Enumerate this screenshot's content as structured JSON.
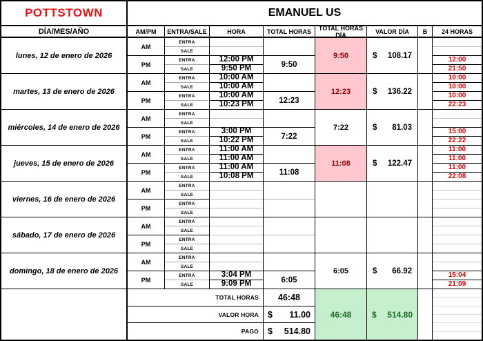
{
  "header": {
    "location": "POTTSTOWN",
    "employee": "EMANUEL US"
  },
  "columns": {
    "date": "DÍA/MES/AÑO",
    "ampm": "AM/PM",
    "entra_sale": "ENTRA/SALE",
    "hora": "HORA",
    "total_horas": "TOTAL HORAS",
    "total_horas_dia": "TOTAL HORAS DÍA",
    "valor_dia": "VALOR DÍA",
    "b": "B",
    "h24": "24 HORAS"
  },
  "labels": {
    "am": "AM",
    "pm": "PM",
    "entra": "ENTRA",
    "sale": "SALE"
  },
  "days": [
    {
      "date": "lunes, 12 de enero de 2026",
      "hora": [
        "",
        "",
        "12:00 PM",
        "9:50 PM"
      ],
      "section_totals": [
        "",
        "9:50"
      ],
      "total_dia": "9:50",
      "valor_dia": {
        "sign": "$",
        "amount": "108.17"
      },
      "h24": [
        "",
        "",
        "12:00",
        "21:50"
      ],
      "highlight": true
    },
    {
      "date": "martes, 13 de enero de 2026",
      "hora": [
        "10:00 AM",
        "10:00 AM",
        "10:00 AM",
        "10:23 PM"
      ],
      "section_totals": [
        "",
        "12:23"
      ],
      "total_dia": "12:23",
      "valor_dia": {
        "sign": "$",
        "amount": "136.22"
      },
      "h24": [
        "10:00",
        "10:00",
        "10:00",
        "22:23"
      ],
      "highlight": true
    },
    {
      "date": "miércoles, 14 de enero de 2026",
      "hora": [
        "",
        "",
        "3:00 PM",
        "10:22 PM"
      ],
      "section_totals": [
        "",
        "7:22"
      ],
      "total_dia": "7:22",
      "valor_dia": {
        "sign": "$",
        "amount": "81.03"
      },
      "h24": [
        "",
        "",
        "15:00",
        "22:22"
      ],
      "highlight": false
    },
    {
      "date": "jueves, 15 de enero de 2026",
      "hora": [
        "11:00 AM",
        "11:00 AM",
        "11:00 AM",
        "10:08 PM"
      ],
      "section_totals": [
        "",
        "11:08"
      ],
      "total_dia": "11:08",
      "valor_dia": {
        "sign": "$",
        "amount": "122.47"
      },
      "h24": [
        "11:00",
        "11:00",
        "11:00",
        "22:08"
      ],
      "highlight": true
    },
    {
      "date": "viernes, 16 de enero de 2026",
      "hora": [
        "",
        "",
        "",
        ""
      ],
      "section_totals": [
        "",
        ""
      ],
      "total_dia": "",
      "valor_dia": {
        "sign": "",
        "amount": ""
      },
      "h24": [
        "",
        "",
        "",
        ""
      ],
      "highlight": false
    },
    {
      "date": "sábado, 17 de enero de 2026",
      "hora": [
        "",
        "",
        "",
        ""
      ],
      "section_totals": [
        "",
        ""
      ],
      "total_dia": "",
      "valor_dia": {
        "sign": "",
        "amount": ""
      },
      "h24": [
        "",
        "",
        "",
        ""
      ],
      "highlight": false
    },
    {
      "date": "domingo, 18 de enero de 2026",
      "hora": [
        "",
        "",
        "3:04 PM",
        "9:09 PM"
      ],
      "section_totals": [
        "",
        "6:05"
      ],
      "total_dia": "6:05",
      "valor_dia": {
        "sign": "$",
        "amount": "66.92"
      },
      "h24": [
        "",
        "",
        "15:04",
        "21:09"
      ],
      "highlight": false
    }
  ],
  "footer": {
    "total_horas_label": "TOTAL HORAS",
    "total_horas_value": "46:48",
    "valor_hora_label": "VALOR HORA",
    "valor_hora_value": {
      "sign": "$",
      "amount": "11.00"
    },
    "pago_label": "PAGO",
    "pago_value": {
      "sign": "$",
      "amount": "514.80"
    },
    "grand_total_horas": "46:48",
    "grand_pago": {
      "sign": "$",
      "amount": "514.80"
    }
  },
  "colors": {
    "title_red": "#EE1111",
    "h24_red": "#DD0000",
    "highlight_bg": "#FFC7CE",
    "highlight_text": "#9C0006",
    "summary_bg": "#C6EFCE",
    "summary_text": "#1E6B24"
  }
}
